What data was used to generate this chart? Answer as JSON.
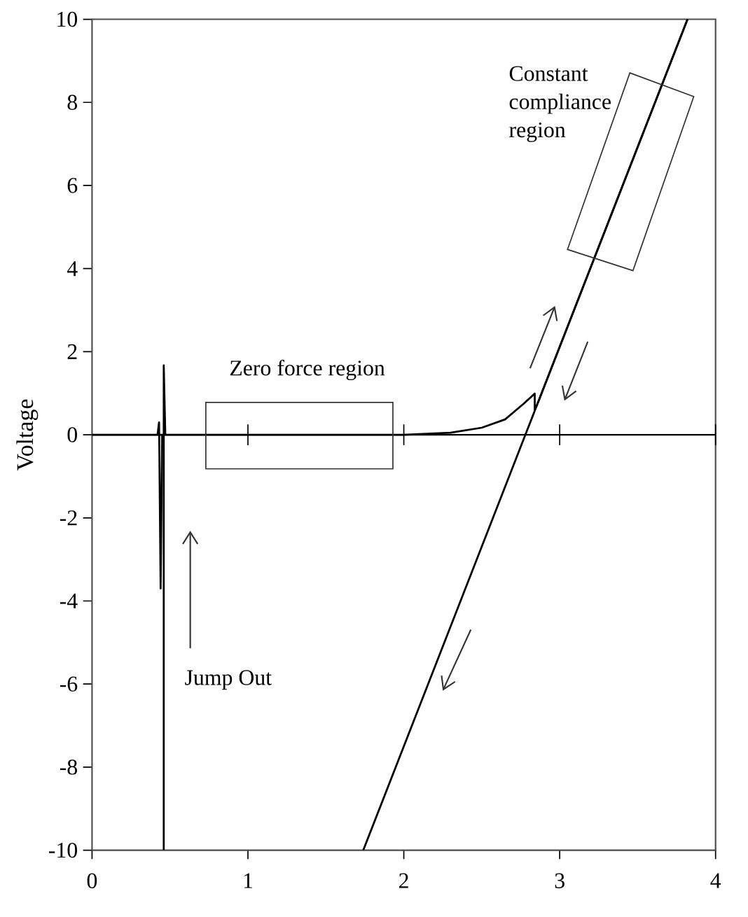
{
  "chart_data": {
    "type": "line",
    "ylabel": "Voltage",
    "xlim": [
      0,
      4
    ],
    "ylim": [
      -10,
      10
    ],
    "xticks": [
      0,
      1,
      2,
      3,
      4
    ],
    "yticks": [
      -10,
      -8,
      -6,
      -4,
      -2,
      0,
      2,
      4,
      6,
      8,
      10
    ],
    "grid": false,
    "marker": "none",
    "line_style": "solid",
    "ref_lines": [
      {
        "axis": "y",
        "value": 0,
        "color": "#000000"
      }
    ],
    "annotations": [
      "Zero force region",
      "Constant compliance region",
      "Jump Out"
    ],
    "series": [
      {
        "color": "#000000",
        "x": [
          0,
          0.2,
          0.4,
          0.43,
          0.6,
          1.0,
          1.5,
          2.0,
          2.3,
          2.5,
          2.65,
          2.77,
          2.84,
          2.84,
          2.86,
          3.3,
          3.82
        ],
        "values": [
          0,
          0,
          0,
          0,
          0,
          0,
          0,
          0,
          0.05,
          0.17,
          0.37,
          0.75,
          0.99,
          0.6,
          0.77,
          5.0,
          10
        ]
      },
      {
        "color": "#000000",
        "x": [
          3.82,
          2.78,
          1.74
        ],
        "values": [
          10,
          0,
          -10
        ]
      },
      {
        "color": "#000000",
        "x": [
          0.42,
          0.43,
          0.44,
          0.45
        ],
        "values": [
          0,
          0.3,
          -3.7,
          0
        ]
      },
      {
        "color": "#000000",
        "x": [
          0.46,
          0.46,
          0.47
        ],
        "values": [
          -10,
          1.67,
          0
        ]
      }
    ]
  }
}
